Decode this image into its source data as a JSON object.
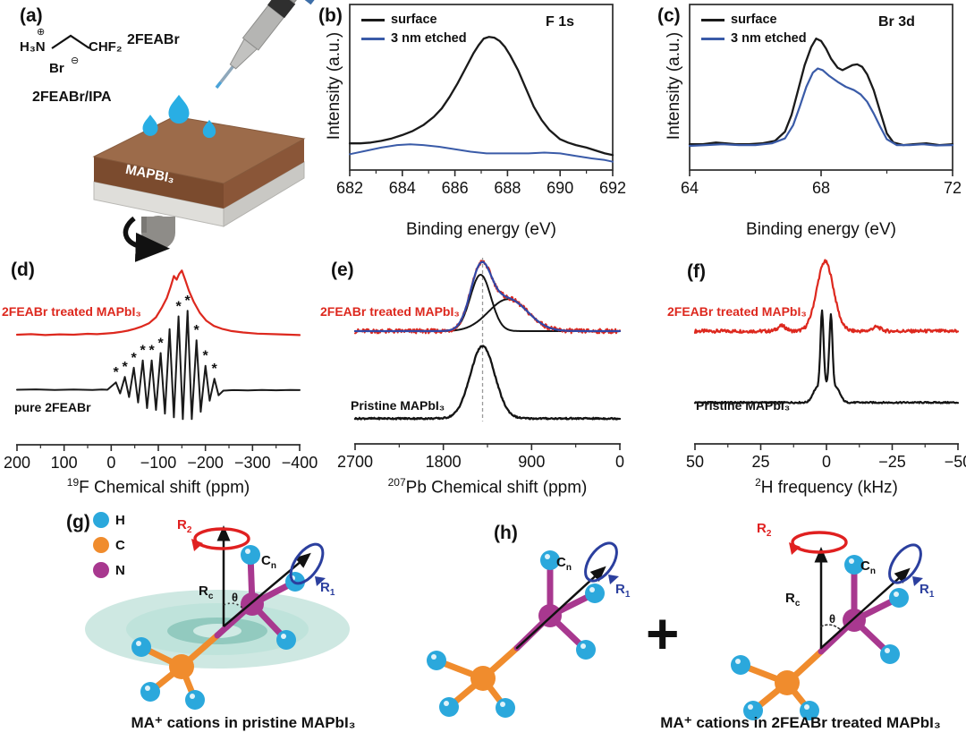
{
  "colors": {
    "black_curve": "#1a1a1a",
    "red_curve": "#DD281E",
    "xps_blue": "#3A5BA8",
    "fit_blue": "#3048A8",
    "atom_h": "#2BA8DC",
    "atom_c": "#F08C2D",
    "atom_n": "#A8388F",
    "rotation_red": "#E02020",
    "rotation_blue": "#2B3F9E",
    "teal_disk": "#9ED2C6",
    "film_brown": "#7B4B2E",
    "droplet": "#29AEE4"
  },
  "panel_a": {
    "tag": "(a)",
    "amine": "H₃N",
    "charge_plus": "⊕",
    "chain_end": "CHF₂",
    "counter_ion": "Br",
    "charge_minus": "⊖",
    "solution_label": "2FEABr",
    "solvent_label": "2FEABr/IPA",
    "film_label": "MAPBI₃"
  },
  "panel_g": {
    "tag": "(g)",
    "legend": [
      {
        "symbol": "H"
      },
      {
        "symbol": "C"
      },
      {
        "symbol": "N"
      }
    ],
    "labels": {
      "r2": [
        "R",
        "2"
      ],
      "r1": [
        "R",
        "1"
      ],
      "rc": [
        "R",
        "c"
      ],
      "cn": [
        "C",
        "n"
      ],
      "theta": "θ"
    },
    "caption": "MA⁺ cations in pristine MAPbI₃"
  },
  "panel_h": {
    "tag": "(h)",
    "plus": "+",
    "left": {
      "cn": [
        "C",
        "n"
      ],
      "r1": [
        "R",
        "1"
      ]
    },
    "right": {
      "r2": [
        "R",
        "2"
      ],
      "rc": [
        "R",
        "c"
      ],
      "theta": "θ",
      "cn": [
        "C",
        "n"
      ],
      "r1": [
        "R",
        "1"
      ]
    },
    "caption": "MA⁺ cations in 2FEABr treated MAPbI₃"
  },
  "chart_data": [
    {
      "id": "b",
      "tag": "(b)",
      "type": "line",
      "title": "F 1s",
      "xlabel": "Binding energy (eV)",
      "ylabel": "Intensity (a.u.)",
      "xlim": [
        682,
        692
      ],
      "xticks": [
        682,
        684,
        686,
        688,
        690,
        692
      ],
      "xticks_minor": [
        683,
        685,
        687,
        689,
        691
      ],
      "box": true,
      "legend": [
        {
          "label": "surface",
          "color": "#1a1a1a"
        },
        {
          "label": "3 nm etched",
          "color": "#3A5BA8"
        }
      ],
      "series": [
        {
          "name": "surface",
          "color": "#1a1a1a",
          "width": 2.3,
          "x": [
            682,
            682.4,
            682.8,
            683.2,
            683.6,
            684,
            684.4,
            684.8,
            685.2,
            685.5,
            685.8,
            686.1,
            686.4,
            686.7,
            686.9,
            687.1,
            687.3,
            687.5,
            687.7,
            687.9,
            688.1,
            688.4,
            688.7,
            689,
            689.3,
            689.6,
            690,
            690.3,
            690.6,
            691,
            691.4,
            691.7,
            692
          ],
          "y": [
            0.16,
            0.16,
            0.165,
            0.175,
            0.19,
            0.21,
            0.235,
            0.27,
            0.32,
            0.37,
            0.44,
            0.52,
            0.61,
            0.7,
            0.75,
            0.79,
            0.8,
            0.795,
            0.775,
            0.74,
            0.69,
            0.6,
            0.49,
            0.38,
            0.3,
            0.24,
            0.185,
            0.165,
            0.15,
            0.135,
            0.115,
            0.1,
            0.09
          ]
        },
        {
          "name": "3 nm etched",
          "color": "#3A5BA8",
          "width": 2,
          "x": [
            682,
            682.6,
            683.2,
            683.8,
            684.3,
            684.8,
            685.4,
            686,
            686.6,
            687.2,
            688,
            688.8,
            689.4,
            690,
            690.6,
            691.2,
            691.7,
            692
          ],
          "y": [
            0.095,
            0.115,
            0.135,
            0.15,
            0.155,
            0.15,
            0.14,
            0.125,
            0.11,
            0.1,
            0.1,
            0.1,
            0.105,
            0.1,
            0.085,
            0.07,
            0.06,
            0.05
          ]
        }
      ]
    },
    {
      "id": "c",
      "tag": "(c)",
      "type": "line",
      "title": "Br 3d",
      "xlabel": "Binding energy (eV)",
      "ylabel": "Intensity (a.u.)",
      "xlim": [
        64,
        72
      ],
      "xticks": [
        64,
        68,
        72
      ],
      "xticks_minor": [
        66,
        70
      ],
      "box": true,
      "legend": [
        {
          "label": "surface",
          "color": "#1a1a1a"
        },
        {
          "label": "3 nm etched",
          "color": "#3A5BA8"
        }
      ],
      "series": [
        {
          "name": "surface",
          "color": "#1a1a1a",
          "width": 2.3,
          "x": [
            64,
            64.4,
            64.8,
            65.1,
            65.4,
            65.8,
            66.2,
            66.6,
            66.9,
            67.1,
            67.3,
            67.5,
            67.7,
            67.85,
            68.0,
            68.15,
            68.3,
            68.5,
            68.65,
            68.8,
            68.95,
            69.1,
            69.25,
            69.4,
            69.6,
            69.8,
            70.0,
            70.2,
            70.5,
            70.8,
            71.2,
            71.6,
            72
          ],
          "y": [
            0.155,
            0.155,
            0.165,
            0.16,
            0.155,
            0.155,
            0.16,
            0.175,
            0.23,
            0.33,
            0.48,
            0.63,
            0.74,
            0.79,
            0.775,
            0.73,
            0.67,
            0.615,
            0.6,
            0.615,
            0.63,
            0.635,
            0.62,
            0.575,
            0.48,
            0.35,
            0.22,
            0.165,
            0.15,
            0.155,
            0.16,
            0.15,
            0.155
          ]
        },
        {
          "name": "3 nm etched",
          "color": "#3A5BA8",
          "width": 2.2,
          "x": [
            64,
            64.5,
            65,
            65.5,
            66,
            66.5,
            66.9,
            67.15,
            67.35,
            67.55,
            67.75,
            67.9,
            68.05,
            68.25,
            68.5,
            68.75,
            69.0,
            69.2,
            69.4,
            69.6,
            69.8,
            70.0,
            70.3,
            70.7,
            71.1,
            71.5,
            72
          ],
          "y": [
            0.145,
            0.15,
            0.155,
            0.15,
            0.15,
            0.16,
            0.19,
            0.27,
            0.38,
            0.5,
            0.585,
            0.61,
            0.6,
            0.565,
            0.53,
            0.5,
            0.48,
            0.455,
            0.41,
            0.34,
            0.26,
            0.185,
            0.15,
            0.15,
            0.155,
            0.148,
            0.15
          ]
        }
      ]
    },
    {
      "id": "d",
      "tag": "(d)",
      "type": "line",
      "xlabel_sup": "19",
      "xlabel_main": "F Chemical shift (ppm)",
      "xlim": [
        200,
        -400
      ],
      "xticks": [
        200,
        100,
        0,
        -100,
        -200,
        -300,
        -400
      ],
      "xticks_minor": [
        150,
        50,
        -50,
        -150,
        -250,
        -350
      ],
      "box": false,
      "labels": {
        "treated": "2FEABr treated MAPbI₃",
        "pure": "pure 2FEABr"
      },
      "marker_symbol": "*",
      "markers": [
        {
          "x": -10,
          "y": 0.37
        },
        {
          "x": -29,
          "y": 0.4
        },
        {
          "x": -48,
          "y": 0.45
        },
        {
          "x": -67,
          "y": 0.49
        },
        {
          "x": -86,
          "y": 0.49
        },
        {
          "x": -105,
          "y": 0.53
        },
        {
          "x": -143,
          "y": 0.73
        },
        {
          "x": -162,
          "y": 0.76
        },
        {
          "x": -181,
          "y": 0.6
        },
        {
          "x": -200,
          "y": 0.46
        },
        {
          "x": -219,
          "y": 0.39
        }
      ],
      "series": [
        {
          "name": "2FEABr treated MAPbI₃",
          "color": "#DD281E",
          "width": 2.2,
          "x": [
            200,
            170,
            140,
            110,
            80,
            50,
            30,
            10,
            -5,
            -20,
            -35,
            -50,
            -65,
            -80,
            -95,
            -108,
            -118,
            -126,
            -133,
            -139,
            -144,
            -150,
            -157,
            -165,
            -175,
            -188,
            -202,
            -218,
            -235,
            -255,
            -280,
            -310,
            -345,
            -380,
            -400
          ],
          "y": [
            0.6,
            0.603,
            0.598,
            0.602,
            0.6,
            0.605,
            0.603,
            0.607,
            0.61,
            0.615,
            0.622,
            0.632,
            0.645,
            0.662,
            0.695,
            0.75,
            0.8,
            0.86,
            0.92,
            0.9,
            0.93,
            0.95,
            0.9,
            0.84,
            0.78,
            0.72,
            0.676,
            0.648,
            0.632,
            0.62,
            0.612,
            0.606,
            0.603,
            0.6,
            0.598
          ]
        },
        {
          "name": "pure 2FEABr",
          "color": "#1a1a1a",
          "width": 2,
          "x": [
            200,
            160,
            120,
            80,
            40,
            20,
            8,
            -10,
            -19,
            -29,
            -38,
            -48,
            -57,
            -67,
            -76,
            -86,
            -95,
            -105,
            -114,
            -124,
            -133,
            -143,
            -152,
            -162,
            -171,
            -181,
            -190,
            -200,
            -209,
            -219,
            -228,
            -238,
            -260,
            -290,
            -320,
            -350,
            -380,
            -400
          ],
          "y": [
            0.3,
            0.302,
            0.299,
            0.301,
            0.299,
            0.301,
            0.3,
            0.34,
            0.28,
            0.37,
            0.26,
            0.42,
            0.23,
            0.46,
            0.2,
            0.46,
            0.19,
            0.5,
            0.17,
            0.63,
            0.15,
            0.7,
            0.14,
            0.73,
            0.14,
            0.57,
            0.18,
            0.43,
            0.24,
            0.36,
            0.27,
            0.295,
            0.298,
            0.296,
            0.299,
            0.297,
            0.299,
            0.298
          ]
        }
      ]
    },
    {
      "id": "e",
      "tag": "(e)",
      "type": "line",
      "xlabel_sup": "207",
      "xlabel_main": "Pb Chemical shift (ppm)",
      "xlim": [
        2700,
        0
      ],
      "xticks": [
        2700,
        1800,
        900,
        0
      ],
      "xticks_minor": [
        2250,
        1350,
        450
      ],
      "box": false,
      "vline": {
        "x": 1400
      },
      "labels": {
        "treated": "2FEABr treated MAPbI₃",
        "pristine": "Pristine MAPbI₃"
      },
      "series": [
        {
          "name": "fit component 1",
          "color": "#141414",
          "width": 2,
          "baseline": 0.6,
          "peaks": [
            {
              "c": 1420,
              "a": 0.3,
              "s": 105
            }
          ],
          "noise": 0
        },
        {
          "name": "fit component 2",
          "color": "#141414",
          "width": 2,
          "baseline": 0.6,
          "peaks": [
            {
              "c": 1140,
              "a": 0.17,
              "s": 200
            }
          ],
          "noise": 0
        },
        {
          "name": "2FEABr treated MAPbI₃ (data)",
          "color": "#DD281E",
          "width": 2,
          "baseline": 0.6,
          "peaks": [
            {
              "c": 1420,
              "a": 0.3,
              "s": 105
            },
            {
              "c": 1140,
              "a": 0.17,
              "s": 200
            }
          ],
          "noise": 0.012
        },
        {
          "name": "total fit",
          "color": "#3048A8",
          "width": 2.2,
          "baseline": 0.6,
          "peaks": [
            {
              "c": 1420,
              "a": 0.3,
              "s": 105
            },
            {
              "c": 1140,
              "a": 0.17,
              "s": 200
            }
          ],
          "noise": 0
        },
        {
          "name": "Pristine MAPbI₃",
          "color": "#141414",
          "width": 2.3,
          "baseline": 0.135,
          "peaks": [
            {
              "c": 1400,
              "a": 0.385,
              "s": 125
            }
          ],
          "noise": 0.004
        }
      ]
    },
    {
      "id": "f",
      "tag": "(f)",
      "type": "line",
      "xlabel_sup": "2",
      "xlabel_main": "H frequency (kHz)",
      "xlim": [
        50,
        -50
      ],
      "xticks": [
        50,
        25,
        0,
        -25,
        -50
      ],
      "xticks_minor": [
        37.5,
        12.5,
        -12.5,
        -37.5
      ],
      "box": false,
      "labels": {
        "treated": "2FEABr treated MAPbI₃",
        "pristine": "Pristine MAPbI₃"
      },
      "series": [
        {
          "name": "2FEABr treated MAPbI₃",
          "color": "#DD281E",
          "width": 2.2,
          "baseline": 0.6,
          "peaks": [
            {
              "c": 0.5,
              "a": 0.37,
              "s": 3.2
            },
            {
              "c": 17,
              "a": 0.028,
              "s": 1.6
            },
            {
              "c": -19,
              "a": 0.022,
              "s": 1.6
            }
          ],
          "noise": 0.009
        },
        {
          "name": "Pristine MAPbI₃",
          "color": "#141414",
          "width": 2.2,
          "baseline": 0.22,
          "peaks": [
            {
              "c": 1.7,
              "a": 0.4,
              "s": 0.6
            },
            {
              "c": -1.7,
              "a": 0.38,
              "s": 0.6
            },
            {
              "c": 0,
              "a": 0.1,
              "s": 2.6
            },
            {
              "c": 4.2,
              "a": 0.045,
              "s": 1.3
            },
            {
              "c": -4.2,
              "a": 0.045,
              "s": 1.3
            }
          ],
          "noise": 0.004
        }
      ]
    }
  ]
}
